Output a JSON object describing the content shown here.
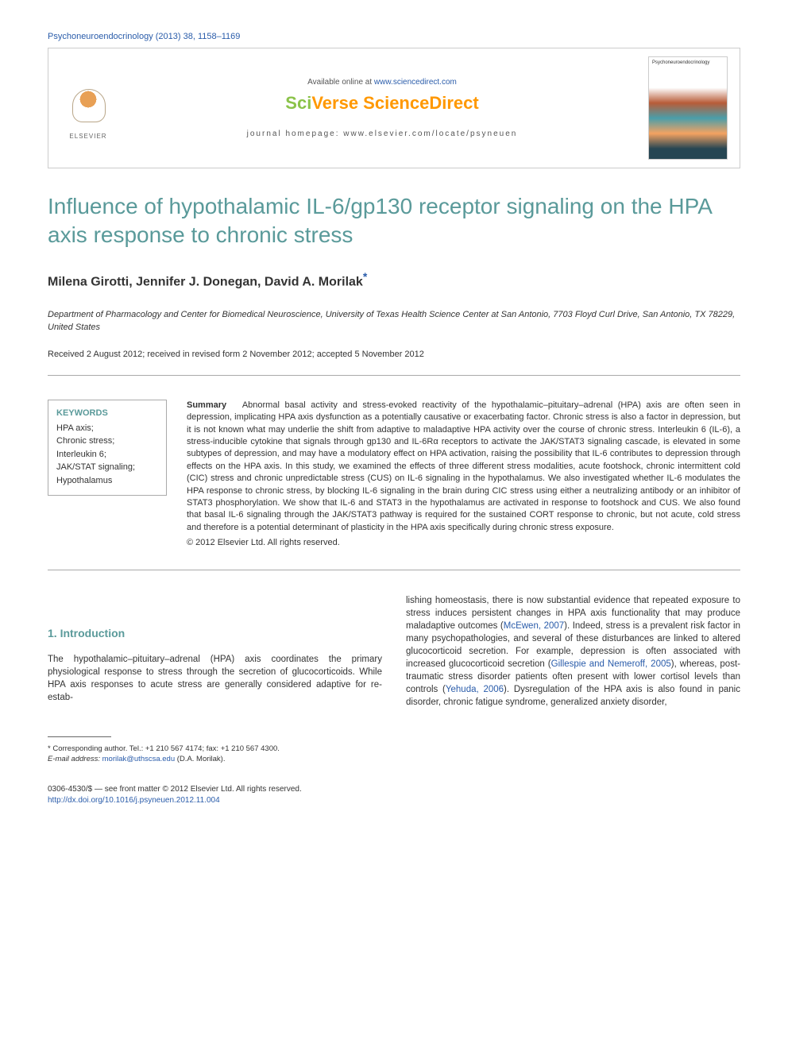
{
  "citation": "Psychoneuroendocrinology (2013) 38, 1158–1169",
  "header": {
    "available": "Available online at ",
    "sd_url": "www.sciencedirect.com",
    "brand_sci": "Sci",
    "brand_verse": "Verse ",
    "brand_sd": "ScienceDirect",
    "homepage": "journal homepage: www.elsevier.com/locate/psyneuen",
    "elsevier": "ELSEVIER",
    "journal_name": "Psychoneuroendocrinology"
  },
  "title": "Influence of hypothalamic IL-6/gp130 receptor signaling on the HPA axis response to chronic stress",
  "authors": "Milena Girotti, Jennifer J. Donegan, David A. Morilak",
  "corr_marker": "*",
  "affiliation": "Department of Pharmacology and Center for Biomedical Neuroscience, University of Texas Health Science Center at San Antonio, 7703 Floyd Curl Drive, San Antonio, TX 78229, United States",
  "dates": "Received 2 August 2012; received in revised form 2 November 2012; accepted 5 November 2012",
  "keywords": {
    "title": "KEYWORDS",
    "items": "HPA axis;\nChronic stress;\nInterleukin 6;\nJAK/STAT signaling;\nHypothalamus"
  },
  "summary": {
    "label": "Summary",
    "text": "Abnormal basal activity and stress-evoked reactivity of the hypothalamic–pituitary–adrenal (HPA) axis are often seen in depression, implicating HPA axis dysfunction as a potentially causative or exacerbating factor. Chronic stress is also a factor in depression, but it is not known what may underlie the shift from adaptive to maladaptive HPA activity over the course of chronic stress. Interleukin 6 (IL-6), a stress-inducible cytokine that signals through gp130 and IL-6Rα receptors to activate the JAK/STAT3 signaling cascade, is elevated in some subtypes of depression, and may have a modulatory effect on HPA activation, raising the possibility that IL-6 contributes to depression through effects on the HPA axis. In this study, we examined the effects of three different stress modalities, acute footshock, chronic intermittent cold (CIC) stress and chronic unpredictable stress (CUS) on IL-6 signaling in the hypothalamus. We also investigated whether IL-6 modulates the HPA response to chronic stress, by blocking IL-6 signaling in the brain during CIC stress using either a neutralizing antibody or an inhibitor of STAT3 phosphorylation. We show that IL-6 and STAT3 in the hypothalamus are activated in response to footshock and CUS. We also found that basal IL-6 signaling through the JAK/STAT3 pathway is required for the sustained CORT response to chronic, but not acute, cold stress and therefore is a potential determinant of plasticity in the HPA axis specifically during chronic stress exposure.",
    "copyright": "© 2012 Elsevier Ltd. All rights reserved."
  },
  "section1": {
    "heading": "1. Introduction",
    "para1": "The hypothalamic–pituitary–adrenal (HPA) axis coordinates the primary physiological response to stress through the secretion of glucocorticoids. While HPA axis responses to acute stress are generally considered adaptive for re-estab-",
    "para2a": "lishing homeostasis, there is now substantial evidence that repeated exposure to stress induces persistent changes in HPA axis functionality that may produce maladaptive outcomes (",
    "cite1": "McEwen, 2007",
    "para2b": "). Indeed, stress is a prevalent risk factor in many psychopathologies, and several of these disturbances are linked to altered glucocorticoid secretion. For example, depression is often associated with increased glucocorticoid secretion (",
    "cite2": "Gillespie and Nemeroff, 2005",
    "para2c": "), whereas, post-traumatic stress disorder patients often present with lower cortisol levels than controls (",
    "cite3": "Yehuda, 2006",
    "para2d": "). Dysregulation of the HPA axis is also found in panic disorder, chronic fatigue syndrome, generalized anxiety disorder,"
  },
  "footnote": {
    "corr": "* Corresponding author. Tel.: +1 210 567 4174; fax: +1 210 567 4300.",
    "email_label": "E-mail address: ",
    "email": "morilak@uthscsa.edu",
    "email_suffix": " (D.A. Morilak)."
  },
  "footer": {
    "line1": "0306-4530/$ — see front matter © 2012 Elsevier Ltd. All rights reserved.",
    "doi": "http://dx.doi.org/10.1016/j.psyneuen.2012.11.004"
  },
  "colors": {
    "link": "#2a5caa",
    "heading": "#5a9a9a",
    "sci_green": "#8bc34a",
    "orange": "#ff9800"
  }
}
